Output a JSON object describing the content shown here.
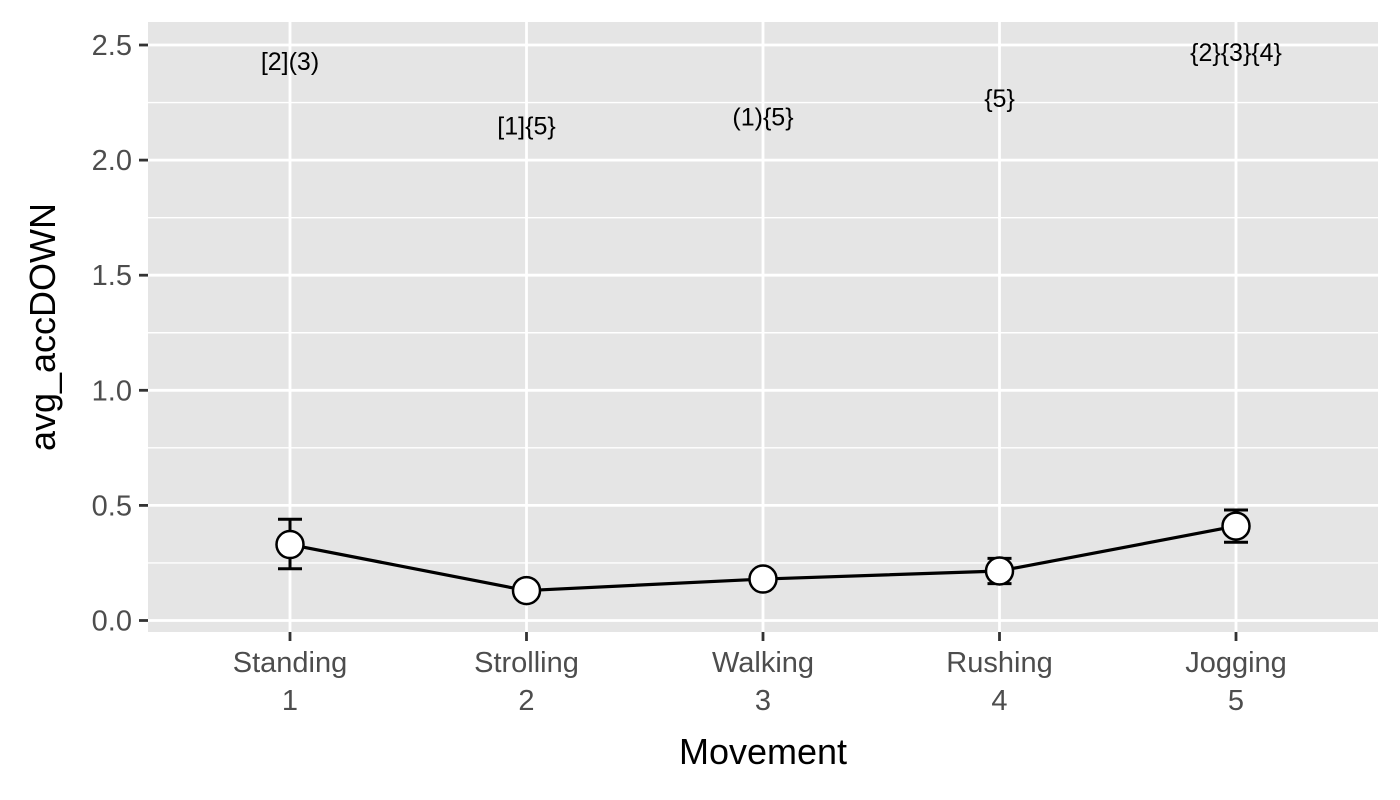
{
  "chart_data": {
    "type": "line",
    "title": "",
    "xlabel": "Movement",
    "ylabel": "avg_accDOWN",
    "categories": [
      {
        "name": "Standing",
        "index": "1"
      },
      {
        "name": "Strolling",
        "index": "2"
      },
      {
        "name": "Walking",
        "index": "3"
      },
      {
        "name": "Rushing",
        "index": "4"
      },
      {
        "name": "Jogging",
        "index": "5"
      }
    ],
    "series": [
      {
        "values": [
          0.33,
          0.13,
          0.18,
          0.215,
          0.41
        ],
        "error_low": [
          0.225,
          0.115,
          0.165,
          0.16,
          0.34
        ],
        "error_high": [
          0.44,
          0.145,
          0.195,
          0.27,
          0.48
        ]
      }
    ],
    "annotations": [
      {
        "category": "Standing",
        "text": "[2](3)",
        "y": 2.43
      },
      {
        "category": "Strolling",
        "text": "[1]{5}",
        "y": 2.15
      },
      {
        "category": "Walking",
        "text": "(1){5}",
        "y": 2.19
      },
      {
        "category": "Rushing",
        "text": "{5}",
        "y": 2.27
      },
      {
        "category": "Jogging",
        "text": "{2}{3}{4}",
        "y": 2.47
      }
    ],
    "ylim": [
      -0.05,
      2.6
    ],
    "yticks": [
      "0.0",
      "0.5",
      "1.0",
      "1.5",
      "2.0",
      "2.5"
    ],
    "grid": true,
    "legend": "none",
    "colors": {
      "panel_background": "#e5e5e5",
      "grid": "#ffffff",
      "line": "#000000",
      "marker_fill": "#ffffff",
      "tick_text": "#4d4d4d",
      "axis_title": "#000000"
    }
  }
}
